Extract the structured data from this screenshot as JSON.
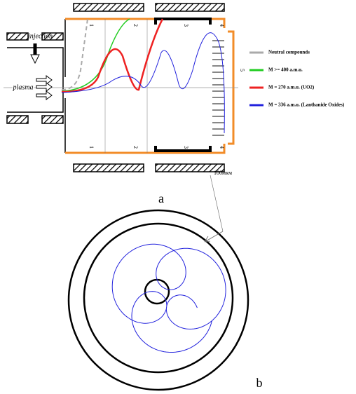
{
  "panel_a": {
    "injection": "injection",
    "plasma": "plasma",
    "zones": [
      "1",
      "2",
      "3",
      "4",
      "5"
    ],
    "zones_bottom": [
      "1",
      "2",
      "3",
      "4"
    ],
    "legend": [
      "Neutral compounds",
      "M >= 400 a.m.u.",
      "M = 270 a.m.u. (UO2)",
      "M = 336 a.m.u. (Lanthanide Oxides)"
    ],
    "caption": "a"
  },
  "panel_b": {
    "scale": "100мкм",
    "caption": "b"
  }
}
